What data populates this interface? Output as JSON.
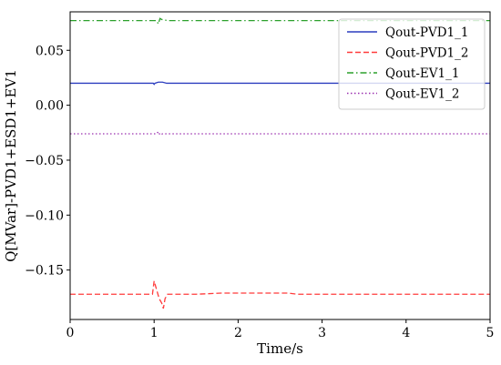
{
  "chart_data": {
    "type": "line",
    "xlabel": "Time/s",
    "ylabel": "Q[MVar]-PVD1+ESD1+EV1",
    "xlim": [
      0,
      5
    ],
    "ylim": [
      -0.195,
      0.085
    ],
    "x_ticks": [
      0,
      1,
      2,
      3,
      4,
      5
    ],
    "x_tick_labels": [
      "0",
      "1",
      "2",
      "3",
      "4",
      "5"
    ],
    "y_ticks": [
      0.05,
      0.0,
      -0.05,
      -0.1,
      -0.15
    ],
    "y_tick_labels": [
      "0.05",
      "0.00",
      "−0.05",
      "−0.10",
      "−0.15"
    ],
    "grid": false,
    "legend_position": "top-right",
    "series": [
      {
        "name": "Qout-PVD1_1",
        "color": "#2b3dbf",
        "dash": "solid",
        "x": [
          0,
          0.99,
          1.0,
          1.01,
          1.05,
          1.1,
          1.15,
          1.2,
          5
        ],
        "y": [
          0.02,
          0.02,
          0.019,
          0.02,
          0.021,
          0.021,
          0.02,
          0.02,
          0.02
        ]
      },
      {
        "name": "Qout-PVD1_2",
        "color": "#ff3b3b",
        "dash": "dashed",
        "x": [
          0,
          0.98,
          1.0,
          1.03,
          1.06,
          1.09,
          1.11,
          1.13,
          1.16,
          1.2,
          1.5,
          1.8,
          2.0,
          2.3,
          2.6,
          2.7,
          3.0,
          4.0,
          5
        ],
        "y": [
          -0.172,
          -0.172,
          -0.16,
          -0.168,
          -0.176,
          -0.18,
          -0.185,
          -0.176,
          -0.172,
          -0.172,
          -0.172,
          -0.171,
          -0.171,
          -0.171,
          -0.171,
          -0.172,
          -0.172,
          -0.172,
          -0.172
        ]
      },
      {
        "name": "Qout-EV1_1",
        "color": "#2ca02c",
        "dash": "dashdot",
        "x": [
          0,
          1.03,
          1.05,
          1.07,
          1.09,
          1.12,
          1.15,
          1.2,
          5
        ],
        "y": [
          0.077,
          0.077,
          0.074,
          0.079,
          0.078,
          0.078,
          0.077,
          0.077,
          0.077
        ]
      },
      {
        "name": "Qout-EV1_2",
        "color": "#9b30b0",
        "dash": "dotted",
        "x": [
          0,
          1.03,
          1.05,
          1.07,
          1.1,
          1.15,
          5
        ],
        "y": [
          -0.026,
          -0.026,
          -0.024,
          -0.027,
          -0.026,
          -0.026,
          -0.026
        ]
      }
    ]
  }
}
